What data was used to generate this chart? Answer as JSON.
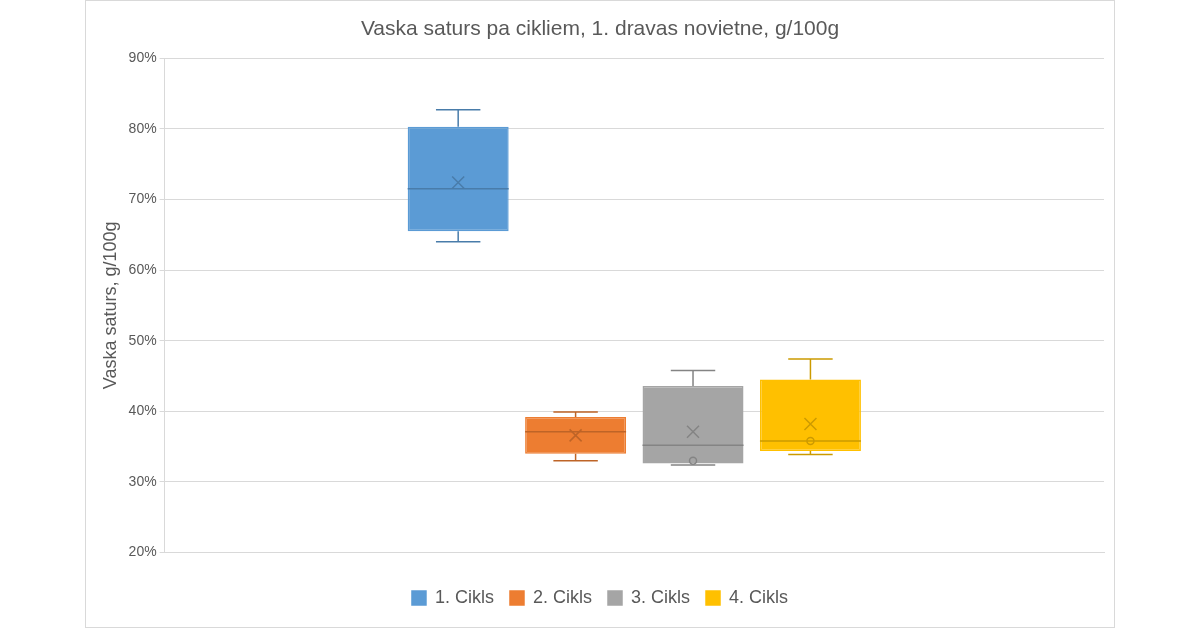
{
  "chart_data": {
    "type": "box",
    "title": "Vaska saturs pa cikliem, 1. dravas novietne, g/100g",
    "ylabel": "Vaska saturs, g/100g",
    "categories": [
      null
    ],
    "series": [
      {
        "name": "1. Cikls",
        "color": "#5b9bd5",
        "boxes": [
          {
            "low": 64.0,
            "q1": 65.5,
            "median": 71.5,
            "q3": 80.3,
            "high": 82.7,
            "mean": 72.4
          }
        ]
      },
      {
        "name": "2. Cikls",
        "color": "#ed7d31",
        "boxes": [
          {
            "low": 33.0,
            "q1": 34.0,
            "median": 37.1,
            "q3": 39.2,
            "high": 39.9,
            "mean": 36.6
          }
        ]
      },
      {
        "name": "3. Cikls",
        "color": "#a5a5a5",
        "boxes": [
          {
            "low": 32.4,
            "q1": 32.6,
            "median": 35.2,
            "q3": 43.6,
            "high": 45.8,
            "mean": 37.1,
            "outliers": [
              33.0
            ]
          }
        ]
      },
      {
        "name": "4. Cikls",
        "color": "#ffc000",
        "boxes": [
          {
            "low": 33.9,
            "q1": 34.4,
            "median": 35.8,
            "q3": 44.5,
            "high": 47.4,
            "mean": 38.2,
            "outliers": [
              35.8
            ]
          }
        ]
      }
    ],
    "ylim": [
      20,
      90
    ],
    "yticks": [
      {
        "value": 20,
        "label": "20%"
      },
      {
        "value": 30,
        "label": "30%"
      },
      {
        "value": 40,
        "label": "40%"
      },
      {
        "value": 50,
        "label": "50%"
      },
      {
        "value": 60,
        "label": "60%"
      },
      {
        "value": 70,
        "label": "70%"
      },
      {
        "value": 80,
        "label": "80%"
      },
      {
        "value": 90,
        "label": "90%"
      }
    ],
    "grid": "y",
    "legend": "bottom"
  }
}
